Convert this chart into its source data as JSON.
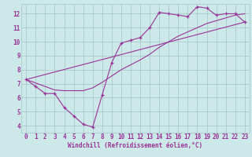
{
  "background_color": "#cce8e8",
  "grid_color": "#aacccc",
  "line_color": "#993399",
  "xlim": [
    -0.5,
    23.5
  ],
  "ylim": [
    3.5,
    12.7
  ],
  "xticks": [
    0,
    1,
    2,
    3,
    4,
    5,
    6,
    7,
    8,
    9,
    10,
    11,
    12,
    13,
    14,
    15,
    16,
    17,
    18,
    19,
    20,
    21,
    22,
    23
  ],
  "yticks": [
    4,
    5,
    6,
    7,
    8,
    9,
    10,
    11,
    12
  ],
  "xlabel": "Windchill (Refroidissement éolien,°C)",
  "series": [
    {
      "x": [
        0,
        1,
        2,
        3,
        4,
        5,
        6,
        7,
        8,
        9,
        10,
        11,
        12,
        13,
        14,
        15,
        16,
        17,
        18,
        19,
        20,
        21,
        22,
        23
      ],
      "y": [
        7.3,
        6.8,
        6.3,
        6.3,
        5.3,
        4.7,
        4.1,
        3.9,
        6.2,
        8.5,
        9.9,
        10.1,
        10.3,
        11.0,
        12.1,
        12.0,
        11.9,
        11.8,
        12.5,
        12.4,
        11.9,
        12.0,
        12.0,
        11.4
      ],
      "has_markers": true
    },
    {
      "x": [
        0,
        1,
        2,
        3,
        4,
        5,
        6,
        7,
        8,
        9,
        10,
        11,
        12,
        13,
        14,
        15,
        16,
        17,
        18,
        19,
        20,
        21,
        22,
        23
      ],
      "y": [
        7.3,
        7.05,
        6.8,
        6.55,
        6.5,
        6.5,
        6.5,
        6.7,
        7.1,
        7.55,
        8.0,
        8.35,
        8.7,
        9.1,
        9.6,
        10.0,
        10.4,
        10.7,
        11.0,
        11.3,
        11.5,
        11.7,
        11.9,
        12.0
      ],
      "has_markers": false
    },
    {
      "x": [
        0,
        23
      ],
      "y": [
        7.3,
        11.4
      ],
      "has_markers": false
    }
  ],
  "tick_fontsize": 5.5,
  "xlabel_fontsize": 5.5
}
